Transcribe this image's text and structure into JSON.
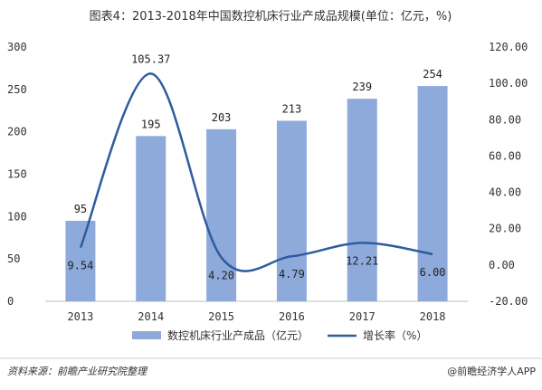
{
  "chart_data": {
    "type": "bar",
    "title": "图表4：2013-2018年中国数控机床行业产成品规模(单位：亿元，%)",
    "categories": [
      "2013",
      "2014",
      "2015",
      "2016",
      "2017",
      "2018"
    ],
    "series": [
      {
        "name": "数控机床行业产成品（亿元）",
        "type": "bar",
        "axis": "left",
        "values": [
          95,
          195,
          203,
          213,
          239,
          254
        ],
        "labels": [
          "95",
          "195",
          "203",
          "213",
          "239",
          "254"
        ],
        "color": "#8eaadb"
      },
      {
        "name": "增长率（%）",
        "type": "line",
        "axis": "right",
        "values": [
          9.54,
          105.37,
          4.2,
          4.79,
          12.21,
          6.0
        ],
        "labels": [
          "9.54",
          "105.37",
          "4.20",
          "4.79",
          "12.21",
          "6.00"
        ],
        "color": "#2e5c9e"
      }
    ],
    "left_axis": {
      "ylim": [
        0,
        300
      ],
      "ticks": [
        "0",
        "50",
        "100",
        "150",
        "200",
        "250",
        "300"
      ]
    },
    "right_axis": {
      "ylim": [
        -20,
        120
      ],
      "ticks": [
        "-20.00",
        "0.00",
        "20.00",
        "40.00",
        "60.00",
        "80.00",
        "100.00",
        "120.00"
      ]
    },
    "grid": false,
    "legend_position": "bottom"
  },
  "footer": {
    "source": "资料来源：前瞻产业研究院整理",
    "brand": "@前瞻经济学人APP"
  }
}
